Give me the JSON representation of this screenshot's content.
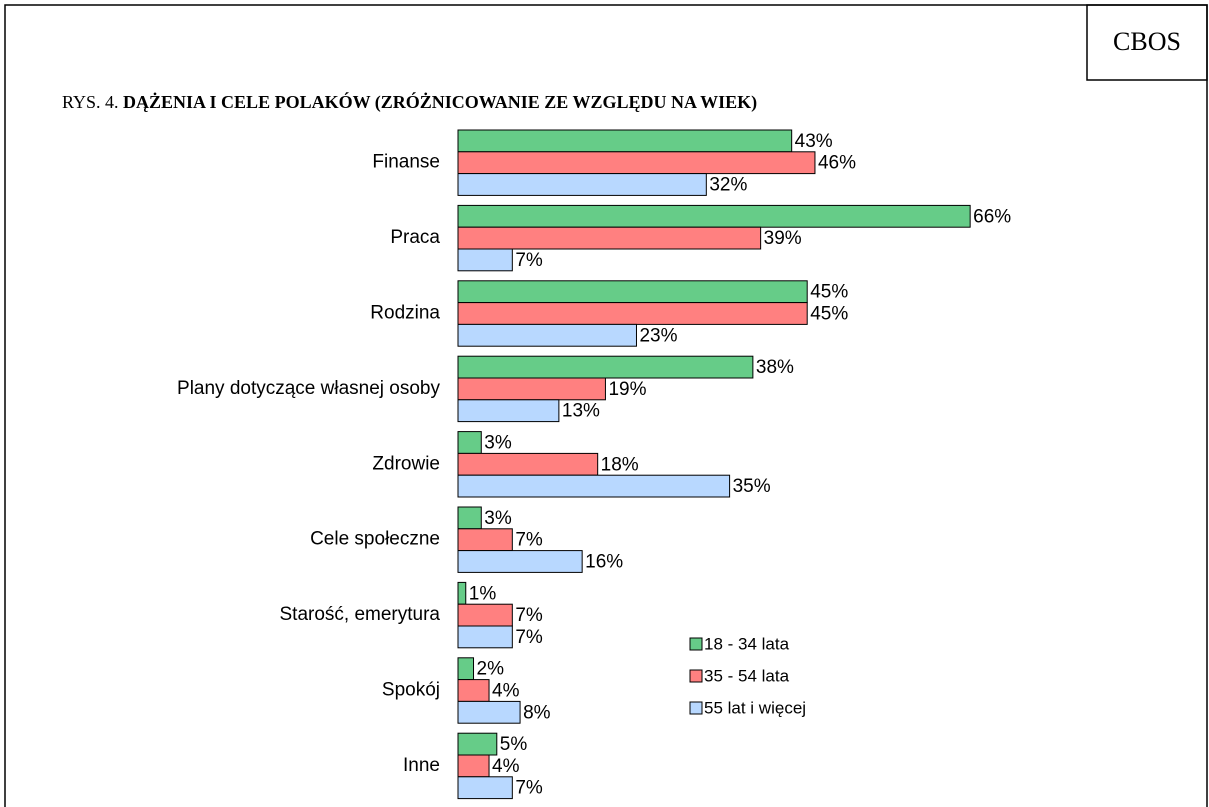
{
  "chart_data": {
    "type": "bar",
    "orientation": "horizontal",
    "source": "CBOS",
    "figure_label": "RYS. 4.",
    "title": "DĄŻENIA I CELE POLAKÓW (ZRÓŻNICOWANIE ZE WZGLĘDU NA WIEK)",
    "categories": [
      "Finanse",
      "Praca",
      "Rodzina",
      "Plany dotyczące własnej osoby",
      "Zdrowie",
      "Cele społeczne",
      "Starość, emerytura",
      "Spokój",
      "Inne"
    ],
    "series": [
      {
        "name": "18 - 34 lata",
        "color": "#66cc88",
        "values": [
          43,
          66,
          45,
          38,
          3,
          3,
          1,
          2,
          5
        ],
        "value_labels": [
          "43%",
          "66%",
          "45%",
          "38%",
          "3%",
          "3%",
          "1%",
          "2%",
          "5%"
        ]
      },
      {
        "name": "35 - 54 lata",
        "color": "#ff8080",
        "values": [
          46,
          39,
          45,
          19,
          18,
          7,
          7,
          4,
          4
        ],
        "value_labels": [
          "46%",
          "39%",
          "45%",
          "19%",
          "18%",
          "7%",
          "7%",
          "4%",
          "4%"
        ]
      },
      {
        "name": "55 lat i więcej",
        "color": "#b8d8ff",
        "values": [
          32,
          7,
          23,
          13,
          35,
          16,
          7,
          8,
          7
        ],
        "value_labels": [
          "32%",
          "7%",
          "23%",
          "13%",
          "35%",
          "16%",
          "7%",
          "8%",
          "7%"
        ]
      }
    ],
    "legend": "lower right"
  }
}
